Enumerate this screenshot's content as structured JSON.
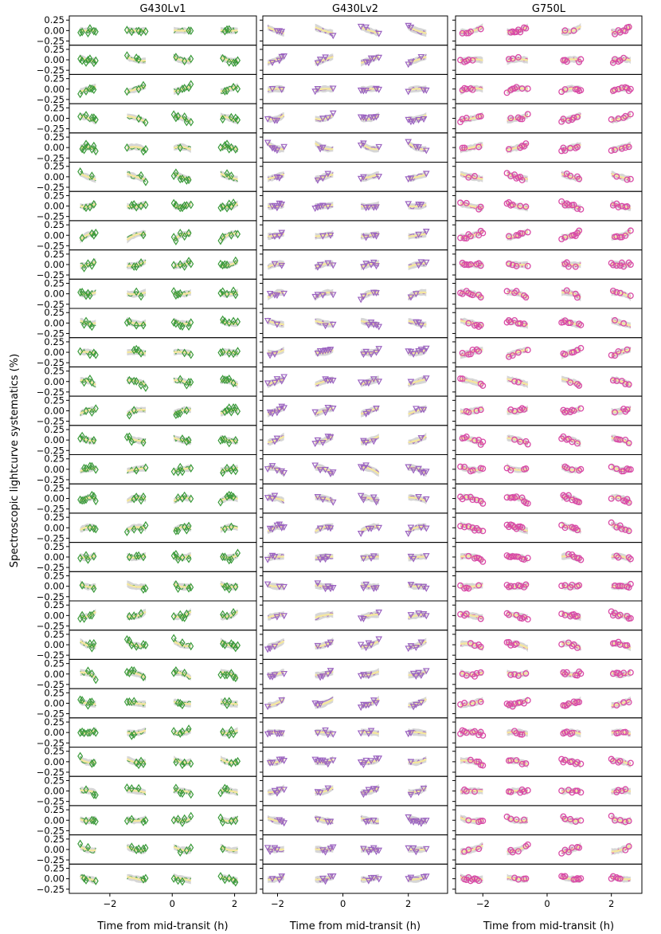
{
  "chart_data": {
    "type": "scatter",
    "ylabel": "Spectroscopic lightcurve systematics (%)",
    "xlabel": "Time from mid-transit (h)",
    "rows": 30,
    "ylim": [
      -0.35,
      0.35
    ],
    "yticks": [
      0.25,
      0.0,
      -0.25
    ],
    "ytick_labels": [
      "0.25",
      "0.00",
      "−0.25"
    ],
    "model_color": "#f5e79e",
    "band_color": "#c8c8c8",
    "panels": [
      {
        "title": "G430Lv1",
        "xlim": [
          -3.3,
          2.7
        ],
        "xticks": [
          -2,
          0,
          2
        ],
        "xtick_labels": [
          "−2",
          "0",
          "2"
        ],
        "marker": "diamond",
        "marker_color": "#3a9a3a",
        "visits": [
          [
            -2.95,
            -2.45
          ],
          [
            -1.45,
            -0.85
          ],
          [
            0.05,
            0.6
          ],
          [
            1.55,
            2.1
          ]
        ],
        "points_per_visit": 9,
        "amp": 0.07
      },
      {
        "title": "G430Lv2",
        "xlim": [
          -2.45,
          3.2
        ],
        "xticks": [
          -2,
          0,
          2
        ],
        "xtick_labels": [
          "−2",
          "0",
          "2"
        ],
        "marker": "triangle-down",
        "marker_color": "#9b62c0",
        "visits": [
          [
            -2.3,
            -1.8
          ],
          [
            -0.85,
            -0.3
          ],
          [
            0.55,
            1.1
          ],
          [
            2.0,
            2.55
          ]
        ],
        "points_per_visit": 8,
        "amp": 0.06
      },
      {
        "title": "G750L",
        "xlim": [
          -2.85,
          2.95
        ],
        "xticks": [
          -2,
          0,
          2
        ],
        "xtick_labels": [
          "−2",
          "0",
          "2"
        ],
        "marker": "circle",
        "marker_color": "#d94aa6",
        "visits": [
          [
            -2.7,
            -2.0
          ],
          [
            -1.25,
            -0.6
          ],
          [
            0.45,
            1.05
          ],
          [
            2.0,
            2.6
          ]
        ],
        "points_per_visit": 12,
        "amp": 0.05
      }
    ]
  }
}
